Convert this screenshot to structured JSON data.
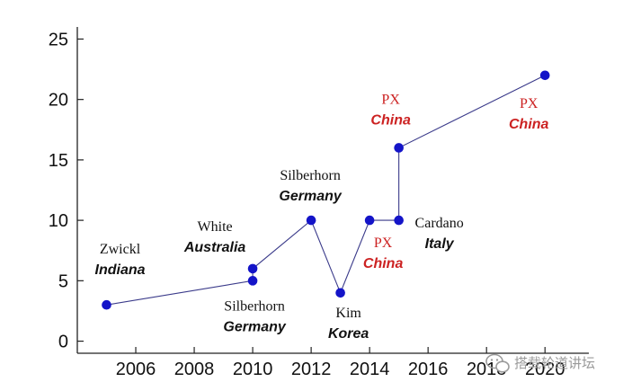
{
  "chart_data": {
    "type": "line",
    "title": "",
    "xlabel": "",
    "ylabel": "",
    "xlim": [
      2004,
      2021.5
    ],
    "ylim": [
      -1,
      26
    ],
    "grid": false,
    "legend": "none",
    "x_ticks": [
      2006,
      2008,
      2010,
      2012,
      2014,
      2016,
      2018,
      2020
    ],
    "y_ticks": [
      0,
      5,
      10,
      15,
      20,
      25
    ],
    "series": [
      {
        "x": [
          2005,
          2010,
          2010,
          2012,
          2013,
          2014,
          2015,
          2015,
          2020
        ],
        "y": [
          3,
          5,
          6,
          10,
          4,
          10,
          10,
          16,
          22
        ]
      }
    ],
    "annotations": [
      {
        "x": 2005,
        "y": 3,
        "name": "Zwickl",
        "place": "Indiana"
      },
      {
        "x": 2010,
        "y": 6,
        "name": "White",
        "place": "Australia"
      },
      {
        "x": 2010,
        "y": 5,
        "name": "Silberhorn",
        "place": "Germany"
      },
      {
        "x": 2012,
        "y": 10,
        "name": "Silberhorn",
        "place": "Germany"
      },
      {
        "x": 2013,
        "y": 4,
        "name": "Kim",
        "place": "Korea"
      },
      {
        "x": 2014,
        "y": 10,
        "name": "PX",
        "place": "China"
      },
      {
        "x": 2015,
        "y": 10,
        "name": "Cardano",
        "place": "Italy"
      },
      {
        "x": 2015,
        "y": 16,
        "name": "PX",
        "place": "China"
      },
      {
        "x": 2020,
        "y": 22,
        "name": "PX",
        "place": "China"
      }
    ],
    "colors": {
      "marker": "#1414c8",
      "line": "#3a3a8a",
      "axis": "#222222",
      "label_default": "#111111",
      "label_highlight": "#cc2222"
    }
  },
  "watermark": {
    "icon": "wechat-icon",
    "text": "搭载轮道讲坛"
  }
}
